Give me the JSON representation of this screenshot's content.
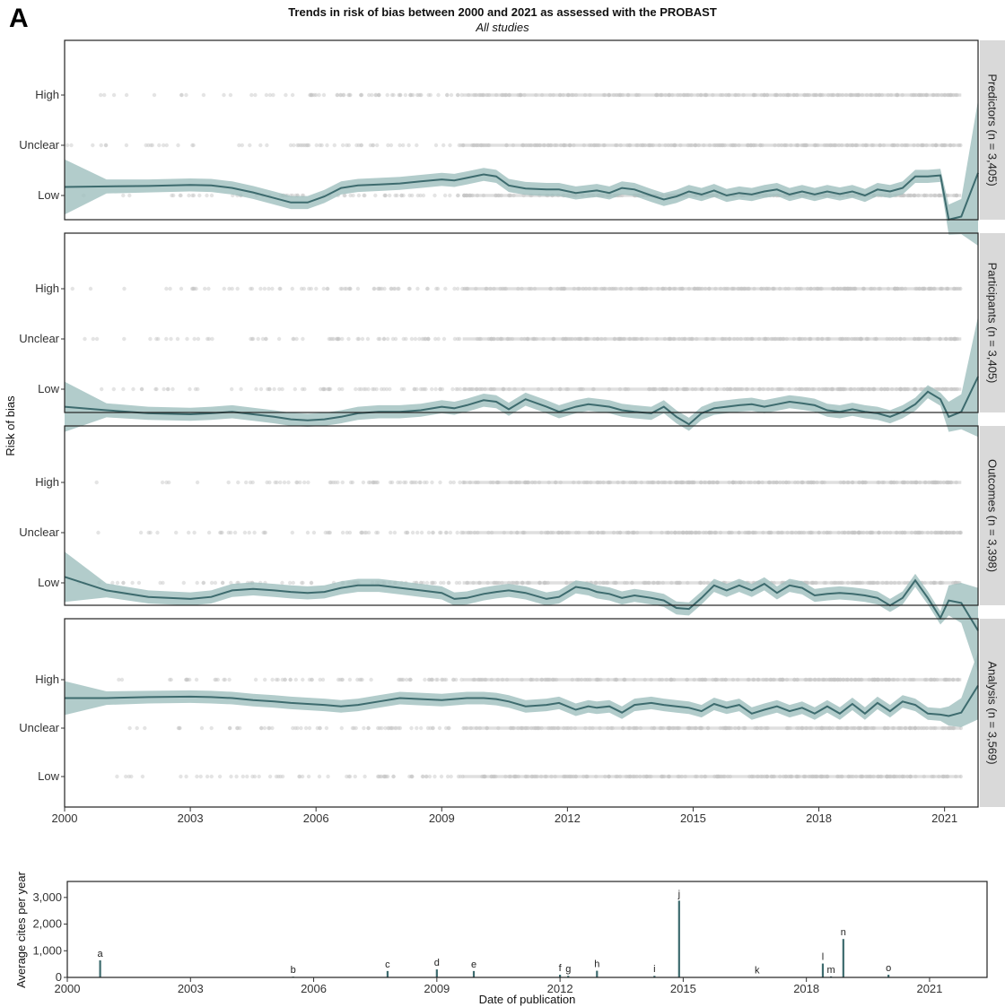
{
  "panel_label": "A",
  "colors": {
    "line": "#3d6b6e",
    "band": "#9fbfbe",
    "points": "#c4c4c4",
    "strip": "#d9d9d9",
    "frame": "#222222"
  },
  "chart_data": [
    {
      "type": "line",
      "title": "Trends in risk of bias between 2000 and 2021 as assessed with the PROBAST",
      "subtitle": "All studies",
      "ylabel": "Risk of bias",
      "xlim": [
        2000,
        2021.8
      ],
      "x_ticks": [
        2000,
        2003,
        2006,
        2009,
        2012,
        2015,
        2018,
        2021
      ],
      "y_categories": [
        "Low",
        "Unclear",
        "High"
      ],
      "facets": [
        {
          "name": "Predictors (n = 3,405)",
          "y_axis": [
            "Low",
            "Unclear",
            "High"
          ],
          "x": [
            2000,
            2001,
            2002,
            2003,
            2003.5,
            2004,
            2004.5,
            2005,
            2005.4,
            2005.8,
            2006.2,
            2006.6,
            2007,
            2007.5,
            2008,
            2008.5,
            2009,
            2009.3,
            2009.6,
            2010,
            2010.3,
            2010.6,
            2011,
            2011.5,
            2011.8,
            2012.2,
            2012.5,
            2012.7,
            2013,
            2013.3,
            2013.6,
            2014,
            2014.3,
            2014.6,
            2014.9,
            2015.2,
            2015.5,
            2015.8,
            2016.1,
            2016.4,
            2016.7,
            2017,
            2017.3,
            2017.6,
            2017.9,
            2018.2,
            2018.5,
            2018.8,
            2019.1,
            2019.4,
            2019.7,
            2020,
            2020.3,
            2020.6,
            2020.9,
            2021.1,
            2021.4,
            2021.8
          ],
          "y": [
            0.17,
            0.18,
            0.19,
            0.21,
            0.2,
            0.15,
            0.06,
            -0.05,
            -0.14,
            -0.14,
            -0.02,
            0.15,
            0.2,
            0.22,
            0.24,
            0.28,
            0.32,
            0.3,
            0.35,
            0.42,
            0.38,
            0.2,
            0.14,
            0.12,
            0.12,
            0.05,
            0.08,
            0.1,
            0.05,
            0.15,
            0.12,
            0.0,
            -0.08,
            -0.02,
            0.08,
            0.02,
            0.1,
            0.0,
            0.05,
            0.02,
            0.08,
            0.12,
            0.02,
            0.08,
            0.02,
            0.08,
            0.03,
            0.08,
            0.0,
            0.12,
            0.08,
            0.15,
            0.38,
            0.38,
            0.4,
            -0.48,
            -0.42,
            0.45
          ],
          "band": [
            0.55,
            0.14,
            0.13,
            0.13,
            0.13,
            0.13,
            0.13,
            0.13,
            0.13,
            0.13,
            0.13,
            0.13,
            0.13,
            0.13,
            0.13,
            0.13,
            0.13,
            0.13,
            0.13,
            0.13,
            0.13,
            0.13,
            0.13,
            0.13,
            0.13,
            0.13,
            0.13,
            0.13,
            0.13,
            0.13,
            0.13,
            0.13,
            0.13,
            0.13,
            0.13,
            0.13,
            0.13,
            0.13,
            0.13,
            0.13,
            0.13,
            0.13,
            0.13,
            0.13,
            0.13,
            0.13,
            0.13,
            0.13,
            0.13,
            0.13,
            0.13,
            0.13,
            0.13,
            0.13,
            0.13,
            0.3,
            0.35,
            1.45
          ]
        },
        {
          "name": "Participants (n = 3,405)",
          "y_axis": [
            "Low",
            "Unclear",
            "High"
          ],
          "x": [
            2000,
            2001,
            2002,
            2003,
            2003.5,
            2004,
            2004.5,
            2005,
            2005.4,
            2005.8,
            2006.2,
            2006.6,
            2007,
            2007.5,
            2008,
            2008.5,
            2009,
            2009.3,
            2009.6,
            2010,
            2010.3,
            2010.6,
            2011,
            2011.5,
            2011.8,
            2012.2,
            2012.5,
            2012.7,
            2013,
            2013.3,
            2013.6,
            2014,
            2014.3,
            2014.6,
            2014.9,
            2015.2,
            2015.5,
            2015.8,
            2016.1,
            2016.4,
            2016.7,
            2017,
            2017.3,
            2017.6,
            2017.9,
            2018.2,
            2018.5,
            2018.8,
            2019.1,
            2019.4,
            2019.7,
            2020,
            2020.3,
            2020.6,
            2020.9,
            2021.1,
            2021.4,
            2021.8
          ],
          "y": [
            -0.35,
            -0.42,
            -0.48,
            -0.5,
            -0.48,
            -0.45,
            -0.5,
            -0.55,
            -0.6,
            -0.62,
            -0.6,
            -0.55,
            -0.48,
            -0.45,
            -0.45,
            -0.42,
            -0.35,
            -0.38,
            -0.32,
            -0.22,
            -0.25,
            -0.4,
            -0.2,
            -0.35,
            -0.45,
            -0.35,
            -0.3,
            -0.32,
            -0.35,
            -0.42,
            -0.45,
            -0.48,
            -0.35,
            -0.55,
            -0.7,
            -0.48,
            -0.38,
            -0.35,
            -0.32,
            -0.3,
            -0.35,
            -0.3,
            -0.25,
            -0.28,
            -0.32,
            -0.42,
            -0.45,
            -0.4,
            -0.45,
            -0.48,
            -0.55,
            -0.45,
            -0.3,
            -0.05,
            -0.2,
            -0.55,
            -0.45,
            0.25
          ],
          "band": [
            0.5,
            0.14,
            0.13,
            0.13,
            0.13,
            0.13,
            0.13,
            0.13,
            0.13,
            0.13,
            0.13,
            0.13,
            0.13,
            0.13,
            0.13,
            0.13,
            0.13,
            0.13,
            0.13,
            0.13,
            0.13,
            0.13,
            0.13,
            0.13,
            0.13,
            0.13,
            0.13,
            0.13,
            0.13,
            0.13,
            0.13,
            0.13,
            0.13,
            0.13,
            0.13,
            0.13,
            0.13,
            0.13,
            0.13,
            0.13,
            0.13,
            0.13,
            0.13,
            0.13,
            0.13,
            0.13,
            0.13,
            0.13,
            0.13,
            0.13,
            0.13,
            0.13,
            0.13,
            0.13,
            0.13,
            0.3,
            0.35,
            1.2
          ]
        },
        {
          "name": "Outcomes (n = 3,398)",
          "y_axis": [
            "Low",
            "Unclear",
            "High"
          ],
          "x": [
            2000,
            2001,
            2002,
            2003,
            2003.5,
            2004,
            2004.5,
            2005,
            2005.4,
            2005.8,
            2006.2,
            2006.6,
            2007,
            2007.5,
            2008,
            2008.5,
            2009,
            2009.3,
            2009.6,
            2010,
            2010.3,
            2010.6,
            2011,
            2011.5,
            2011.8,
            2012.2,
            2012.5,
            2012.7,
            2013,
            2013.3,
            2013.6,
            2014,
            2014.3,
            2014.6,
            2014.9,
            2015.2,
            2015.5,
            2015.8,
            2016.1,
            2016.4,
            2016.7,
            2017,
            2017.3,
            2017.6,
            2017.9,
            2018.2,
            2018.5,
            2018.8,
            2019.1,
            2019.4,
            2019.7,
            2020,
            2020.3,
            2020.6,
            2020.9,
            2021.1,
            2021.4,
            2021.8
          ],
          "y": [
            0.12,
            -0.15,
            -0.28,
            -0.32,
            -0.28,
            -0.15,
            -0.12,
            -0.15,
            -0.18,
            -0.2,
            -0.18,
            -0.1,
            -0.05,
            -0.05,
            -0.1,
            -0.15,
            -0.2,
            -0.32,
            -0.3,
            -0.22,
            -0.18,
            -0.15,
            -0.2,
            -0.32,
            -0.28,
            -0.08,
            -0.12,
            -0.18,
            -0.22,
            -0.3,
            -0.25,
            -0.3,
            -0.35,
            -0.5,
            -0.52,
            -0.3,
            -0.05,
            -0.15,
            -0.05,
            -0.15,
            -0.02,
            -0.2,
            -0.05,
            -0.1,
            -0.25,
            -0.22,
            -0.2,
            -0.22,
            -0.25,
            -0.3,
            -0.45,
            -0.3,
            0.05,
            -0.3,
            -0.7,
            -0.35,
            -0.4,
            -0.95
          ],
          "band": [
            0.5,
            0.14,
            0.13,
            0.13,
            0.13,
            0.13,
            0.13,
            0.13,
            0.13,
            0.13,
            0.13,
            0.13,
            0.13,
            0.13,
            0.13,
            0.13,
            0.13,
            0.13,
            0.13,
            0.13,
            0.13,
            0.13,
            0.13,
            0.13,
            0.13,
            0.13,
            0.13,
            0.13,
            0.13,
            0.13,
            0.13,
            0.13,
            0.13,
            0.13,
            0.13,
            0.13,
            0.13,
            0.13,
            0.13,
            0.13,
            0.13,
            0.13,
            0.13,
            0.13,
            0.13,
            0.13,
            0.13,
            0.13,
            0.13,
            0.13,
            0.13,
            0.13,
            0.13,
            0.13,
            0.13,
            0.3,
            0.4,
            0.85
          ]
        },
        {
          "name": "Analysis (n = 3,569)",
          "y_axis": [
            "Low",
            "Unclear",
            "High"
          ],
          "x": [
            2000,
            2001,
            2002,
            2003,
            2003.5,
            2004,
            2004.5,
            2005,
            2005.4,
            2005.8,
            2006.2,
            2006.6,
            2007,
            2007.5,
            2008,
            2008.5,
            2009,
            2009.3,
            2009.6,
            2010,
            2010.3,
            2010.6,
            2011,
            2011.5,
            2011.8,
            2012.2,
            2012.5,
            2012.7,
            2013,
            2013.3,
            2013.6,
            2014,
            2014.3,
            2014.6,
            2014.9,
            2015.2,
            2015.5,
            2015.8,
            2016.1,
            2016.4,
            2016.7,
            2017,
            2017.3,
            2017.6,
            2017.9,
            2018.2,
            2018.5,
            2018.8,
            2019.1,
            2019.4,
            2019.7,
            2020,
            2020.3,
            2020.6,
            2020.9,
            2021.1,
            2021.4,
            2021.8
          ],
          "y": [
            1.62,
            1.62,
            1.64,
            1.65,
            1.64,
            1.62,
            1.58,
            1.55,
            1.52,
            1.5,
            1.48,
            1.45,
            1.48,
            1.55,
            1.62,
            1.6,
            1.58,
            1.6,
            1.62,
            1.62,
            1.6,
            1.55,
            1.45,
            1.48,
            1.52,
            1.38,
            1.45,
            1.42,
            1.45,
            1.32,
            1.48,
            1.52,
            1.48,
            1.45,
            1.42,
            1.35,
            1.5,
            1.42,
            1.48,
            1.3,
            1.38,
            1.45,
            1.35,
            1.42,
            1.3,
            1.45,
            1.3,
            1.5,
            1.3,
            1.52,
            1.35,
            1.55,
            1.48,
            1.3,
            1.28,
            1.25,
            1.32,
            1.88
          ],
          "band": [
            0.35,
            0.14,
            0.13,
            0.13,
            0.13,
            0.13,
            0.13,
            0.13,
            0.13,
            0.13,
            0.13,
            0.13,
            0.13,
            0.13,
            0.13,
            0.13,
            0.13,
            0.13,
            0.13,
            0.13,
            0.13,
            0.13,
            0.13,
            0.13,
            0.13,
            0.13,
            0.13,
            0.13,
            0.13,
            0.13,
            0.13,
            0.13,
            0.13,
            0.13,
            0.13,
            0.13,
            0.13,
            0.13,
            0.13,
            0.13,
            0.13,
            0.13,
            0.13,
            0.13,
            0.13,
            0.13,
            0.13,
            0.13,
            0.13,
            0.13,
            0.13,
            0.13,
            0.13,
            0.13,
            0.13,
            0.2,
            0.3,
            0.7
          ]
        }
      ]
    },
    {
      "type": "bar",
      "xlabel": "Date of publication",
      "ylabel": "Average cites per year",
      "xlim": [
        2000,
        2022.4
      ],
      "x_ticks": [
        2000,
        2003,
        2006,
        2009,
        2012,
        2015,
        2018,
        2021
      ],
      "ylim": [
        0,
        3600
      ],
      "y_ticks": [
        0,
        1000,
        2000,
        3000
      ],
      "y_tick_labels": [
        "0",
        "1,000",
        "2,000",
        "3,000"
      ],
      "bars": [
        {
          "label": "a",
          "x": 2000.8,
          "value": 640
        },
        {
          "label": "b",
          "x": 2005.5,
          "value": 30
        },
        {
          "label": "c",
          "x": 2007.8,
          "value": 240
        },
        {
          "label": "d",
          "x": 2009.0,
          "value": 300
        },
        {
          "label": "e",
          "x": 2009.9,
          "value": 240
        },
        {
          "label": "f",
          "x": 2012.0,
          "value": 100
        },
        {
          "label": "g",
          "x": 2012.2,
          "value": 60
        },
        {
          "label": "h",
          "x": 2012.9,
          "value": 250
        },
        {
          "label": "i",
          "x": 2014.3,
          "value": 60
        },
        {
          "label": "j",
          "x": 2014.9,
          "value": 2880
        },
        {
          "label": "k",
          "x": 2016.8,
          "value": 20
        },
        {
          "label": "l",
          "x": 2018.4,
          "value": 520
        },
        {
          "label": "m",
          "x": 2018.6,
          "value": 40
        },
        {
          "label": "n",
          "x": 2018.9,
          "value": 1440
        },
        {
          "label": "o",
          "x": 2020.0,
          "value": 100
        }
      ]
    }
  ]
}
